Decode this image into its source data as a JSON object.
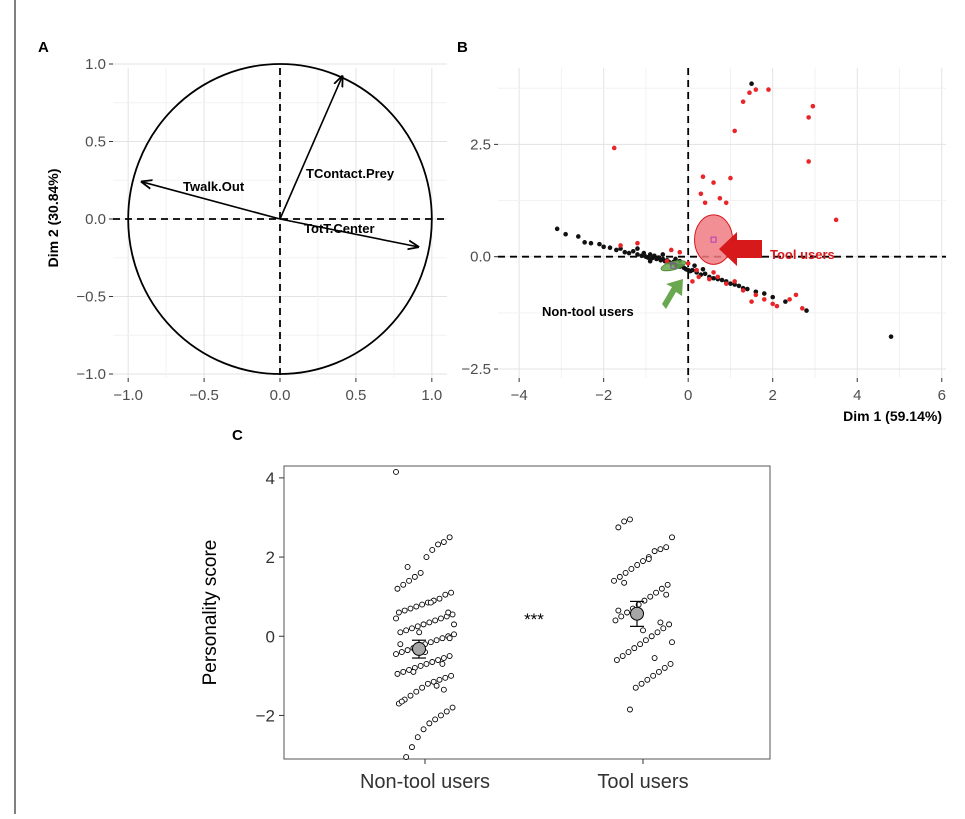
{
  "chart_data": [
    {
      "panel": "A",
      "type": "scatter",
      "subtype": "pca-variable-correlation-circle",
      "xlabel": "",
      "ylabel": "Dim 2 (30.84%)",
      "xlim": [
        -1.1,
        1.1
      ],
      "ylim": [
        -1.0,
        1.0
      ],
      "xticks": [
        "-1.0",
        "-0.5",
        "0.0",
        "0.5",
        "1.0"
      ],
      "yticks": [
        "-1.0",
        "-0.5",
        "0.0",
        "0.5",
        "1.0"
      ],
      "grid": true,
      "unit_circle": true,
      "vectors": [
        {
          "name": "TContact.Prey",
          "x": 0.41,
          "y": 0.92
        },
        {
          "name": "Twalk.Out",
          "x": -0.91,
          "y": 0.24
        },
        {
          "name": "TotT.Center",
          "x": 0.91,
          "y": -0.18
        }
      ]
    },
    {
      "panel": "B",
      "type": "scatter",
      "subtype": "pca-individuals",
      "xlabel": "Dim 1 (59.14%)",
      "ylabel": "",
      "xlim": [
        -4.5,
        6.1
      ],
      "ylim": [
        -2.7,
        4.2
      ],
      "xticks": [
        "-4",
        "-2",
        "0",
        "2",
        "4",
        "6"
      ],
      "yticks": [
        "-2.5",
        "0.0",
        "2.5"
      ],
      "grid": true,
      "colors": {
        "tool": "#e8262a",
        "nontool": "#111111",
        "ellipse_tool": "#f07b82",
        "ellipse_nontool": "#6aa84f",
        "arrow_tool": "#d7191c",
        "arrow_nontool": "#6aa84f"
      },
      "annotations": [
        {
          "label": "Tool users",
          "color": "#d7191c"
        },
        {
          "label": "Non-tool users",
          "color": "#111111"
        }
      ],
      "series": [
        {
          "group": "nontool",
          "points": [
            [
              -3.1,
              0.62
            ],
            [
              -2.9,
              0.5
            ],
            [
              -2.6,
              0.45
            ],
            [
              -2.45,
              0.32
            ],
            [
              -2.3,
              0.3
            ],
            [
              -2.1,
              0.28
            ],
            [
              -2.0,
              0.22
            ],
            [
              -1.85,
              0.2
            ],
            [
              -1.7,
              0.15
            ],
            [
              -1.6,
              0.18
            ],
            [
              -1.5,
              0.1
            ],
            [
              -1.4,
              0.08
            ],
            [
              -1.3,
              0.12
            ],
            [
              -1.2,
              0.05
            ],
            [
              -1.1,
              0.02
            ],
            [
              -1.05,
              0.08
            ],
            [
              -1.0,
              0.0
            ],
            [
              -0.95,
              -0.02
            ],
            [
              -0.9,
              0.05
            ],
            [
              -0.85,
              -0.03
            ],
            [
              -0.8,
              0.02
            ],
            [
              -0.75,
              -0.05
            ],
            [
              -0.7,
              -0.02
            ],
            [
              -0.65,
              -0.08
            ],
            [
              -0.6,
              -0.05
            ],
            [
              -0.55,
              -0.1
            ],
            [
              -0.5,
              -0.08
            ],
            [
              -0.45,
              -0.12
            ],
            [
              -0.4,
              -0.15
            ],
            [
              -0.35,
              -0.12
            ],
            [
              -0.3,
              -0.18
            ],
            [
              -0.25,
              -0.2
            ],
            [
              -0.2,
              -0.22
            ],
            [
              -0.15,
              -0.2
            ],
            [
              -0.1,
              -0.25
            ],
            [
              -0.05,
              -0.28
            ],
            [
              0.0,
              -0.3
            ],
            [
              0.05,
              -0.32
            ],
            [
              0.1,
              -0.3
            ],
            [
              0.2,
              -0.35
            ],
            [
              0.3,
              -0.4
            ],
            [
              0.4,
              -0.38
            ],
            [
              0.5,
              -0.45
            ],
            [
              0.6,
              -0.48
            ],
            [
              0.7,
              -0.5
            ],
            [
              0.8,
              -0.52
            ],
            [
              0.9,
              -0.55
            ],
            [
              1.0,
              -0.6
            ],
            [
              1.1,
              -0.62
            ],
            [
              1.2,
              -0.65
            ],
            [
              1.3,
              -0.7
            ],
            [
              1.4,
              -0.72
            ],
            [
              1.6,
              -0.78
            ],
            [
              1.8,
              -0.82
            ],
            [
              2.0,
              -0.9
            ],
            [
              2.3,
              -1.0
            ],
            [
              2.8,
              -1.2
            ],
            [
              4.8,
              -1.78
            ],
            [
              1.5,
              3.85
            ],
            [
              -0.3,
              -0.05
            ],
            [
              -0.2,
              -0.1
            ],
            [
              0.15,
              -0.2
            ],
            [
              0.35,
              -0.28
            ],
            [
              -0.6,
              0.05
            ],
            [
              -1.2,
              0.18
            ],
            [
              -0.9,
              -0.1
            ]
          ]
        },
        {
          "group": "tool",
          "points": [
            [
              -1.75,
              2.42
            ],
            [
              0.35,
              1.78
            ],
            [
              0.3,
              1.4
            ],
            [
              0.4,
              1.2
            ],
            [
              0.6,
              1.65
            ],
            [
              0.75,
              1.3
            ],
            [
              0.9,
              1.2
            ],
            [
              1.0,
              1.75
            ],
            [
              1.1,
              2.8
            ],
            [
              1.3,
              3.45
            ],
            [
              1.45,
              3.65
            ],
            [
              1.6,
              3.72
            ],
            [
              1.9,
              3.72
            ],
            [
              2.85,
              3.1
            ],
            [
              2.95,
              3.35
            ],
            [
              2.85,
              2.12
            ],
            [
              3.5,
              0.82
            ],
            [
              -1.6,
              0.25
            ],
            [
              -1.2,
              0.3
            ],
            [
              -0.4,
              0.15
            ],
            [
              -0.2,
              0.1
            ],
            [
              0.0,
              -0.15
            ],
            [
              0.2,
              -0.3
            ],
            [
              0.5,
              -0.5
            ],
            [
              0.7,
              -0.45
            ],
            [
              0.9,
              -0.6
            ],
            [
              1.1,
              -0.55
            ],
            [
              1.3,
              -0.75
            ],
            [
              1.6,
              -0.85
            ],
            [
              1.8,
              -0.95
            ],
            [
              2.0,
              -1.05
            ],
            [
              2.1,
              -1.1
            ],
            [
              2.4,
              -0.95
            ],
            [
              2.55,
              -0.85
            ],
            [
              2.7,
              -1.15
            ],
            [
              0.25,
              -0.45
            ],
            [
              -0.5,
              -0.1
            ],
            [
              0.1,
              -0.55
            ],
            [
              1.5,
              -1.0
            ],
            [
              0.6,
              -0.35
            ]
          ]
        }
      ],
      "ellipses": [
        {
          "group": "tool",
          "cx": 0.6,
          "cy": 0.38,
          "rx": 0.45,
          "ry": 0.55,
          "angle": 0
        },
        {
          "group": "nontool",
          "cx": -0.35,
          "cy": -0.2,
          "rx": 0.3,
          "ry": 0.09,
          "angle": -15
        }
      ]
    },
    {
      "panel": "C",
      "type": "scatter",
      "subtype": "jitter-with-mean-se",
      "categories": [
        "Non-tool users",
        "Tool users"
      ],
      "ylabel": "Personality score",
      "ylim": [
        -3.1,
        4.3
      ],
      "yticks": [
        "-2",
        "0",
        "2",
        "4"
      ],
      "significance": "***",
      "means": [
        {
          "category": "Non-tool users",
          "mean": -0.32,
          "se_low": -0.55,
          "se_high": -0.1
        },
        {
          "category": "Tool users",
          "mean": 0.57,
          "se_low": 0.25,
          "se_high": 0.88
        }
      ],
      "series": [
        {
          "category": "Non-tool users",
          "values": [
            4.15,
            2.5,
            2.38,
            2.32,
            2.18,
            2.0,
            1.6,
            1.5,
            1.4,
            1.3,
            1.2,
            1.1,
            1.05,
            0.95,
            0.9,
            0.85,
            0.8,
            0.75,
            0.7,
            0.65,
            0.6,
            0.55,
            0.5,
            0.45,
            0.4,
            0.35,
            0.3,
            0.25,
            0.2,
            0.15,
            0.1,
            0.05,
            0.0,
            -0.05,
            -0.1,
            -0.15,
            -0.2,
            -0.25,
            -0.3,
            -0.35,
            -0.4,
            -0.45,
            -0.5,
            -0.55,
            -0.6,
            -0.65,
            -0.7,
            -0.75,
            -0.8,
            -0.85,
            -0.9,
            -0.95,
            -1.0,
            -1.05,
            -1.1,
            -1.15,
            -1.2,
            -1.3,
            -1.4,
            -1.5,
            -1.6,
            -1.7,
            -1.8,
            -1.9,
            -2.0,
            -2.1,
            -2.2,
            -2.35,
            -2.55,
            -2.8,
            -3.05,
            -0.2,
            0.3,
            0.6,
            -0.7,
            -1.25,
            0.85,
            -0.4,
            0.1,
            -0.9,
            1.75,
            -1.65,
            0.45,
            -0.05,
            -1.35
          ]
        },
        {
          "category": "Tool users",
          "values": [
            2.95,
            2.9,
            2.75,
            2.5,
            2.25,
            2.2,
            2.15,
            2.0,
            1.9,
            1.8,
            1.7,
            1.6,
            1.5,
            1.4,
            1.3,
            1.2,
            1.1,
            1.0,
            0.9,
            0.8,
            0.7,
            0.6,
            0.5,
            0.4,
            0.3,
            0.2,
            0.1,
            0.0,
            -0.1,
            -0.2,
            -0.3,
            -0.4,
            -0.5,
            -0.6,
            -0.7,
            -0.8,
            -0.9,
            -1.0,
            -1.1,
            -1.2,
            -1.3,
            -1.85,
            1.35,
            0.65,
            -0.15,
            1.05,
            0.35,
            -0.55,
            1.95,
            0.15
          ]
        }
      ]
    }
  ]
}
